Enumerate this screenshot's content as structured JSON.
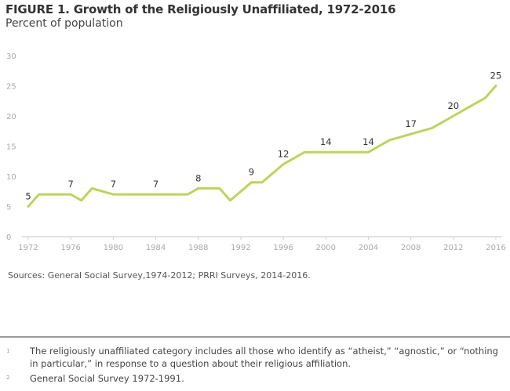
{
  "figure": {
    "title": "FIGURE 1.  Growth of the Religiously Unaffiliated, 1972-2016",
    "subtitle": "Percent of population",
    "line_color": "#bcd45e",
    "sources": "Sources: General Social Survey,1974-2012; PRRI Surveys, 2014-2016."
  },
  "footnotes": [
    {
      "number": "1",
      "text": "The religiously unaffiliated category includes all those who identify as “atheist,” “agnostic,” or “nothing in particular,” in response to a question about their religious affiliation."
    },
    {
      "number": "2",
      "text": "General Social Survey 1972-1991."
    }
  ],
  "chart_data": {
    "type": "line",
    "title": "Growth of the Religiously Unaffiliated, 1972-2016",
    "subtitle": "Percent of population",
    "xlabel": "",
    "ylabel": "Percent of population",
    "xlim": [
      1972,
      2016
    ],
    "ylim": [
      0,
      30
    ],
    "grid": false,
    "x_ticks": [
      1972,
      1976,
      1980,
      1984,
      1988,
      1992,
      1996,
      2000,
      2004,
      2008,
      2012,
      2016
    ],
    "y_ticks": [
      0,
      5,
      10,
      15,
      20,
      25,
      30
    ],
    "series": [
      {
        "name": "Religiously unaffiliated",
        "x": [
          1972,
          1973,
          1974,
          1975,
          1976,
          1977,
          1978,
          1980,
          1982,
          1983,
          1984,
          1985,
          1986,
          1987,
          1988,
          1989,
          1990,
          1991,
          1993,
          1994,
          1996,
          1998,
          2000,
          2002,
          2004,
          2006,
          2008,
          2010,
          2012,
          2014,
          2015,
          2016
        ],
        "values": [
          5,
          7,
          7,
          7,
          7,
          6,
          8,
          7,
          7,
          7,
          7,
          7,
          7,
          7,
          8,
          8,
          8,
          6,
          9,
          9,
          12,
          14,
          14,
          14,
          14,
          16,
          17,
          18,
          20,
          22,
          23,
          25
        ]
      }
    ],
    "data_labels": [
      {
        "x": 1972,
        "value": 5,
        "text": "5"
      },
      {
        "x": 1976,
        "value": 7,
        "text": "7"
      },
      {
        "x": 1980,
        "value": 7,
        "text": "7"
      },
      {
        "x": 1984,
        "value": 7,
        "text": "7"
      },
      {
        "x": 1988,
        "value": 8,
        "text": "8"
      },
      {
        "x": 1993,
        "value": 9,
        "text": "9"
      },
      {
        "x": 1996,
        "value": 12,
        "text": "12"
      },
      {
        "x": 2000,
        "value": 14,
        "text": "14"
      },
      {
        "x": 2004,
        "value": 14,
        "text": "14"
      },
      {
        "x": 2008,
        "value": 17,
        "text": "17"
      },
      {
        "x": 2012,
        "value": 20,
        "text": "20"
      },
      {
        "x": 2016,
        "value": 25,
        "text": "25"
      }
    ]
  }
}
